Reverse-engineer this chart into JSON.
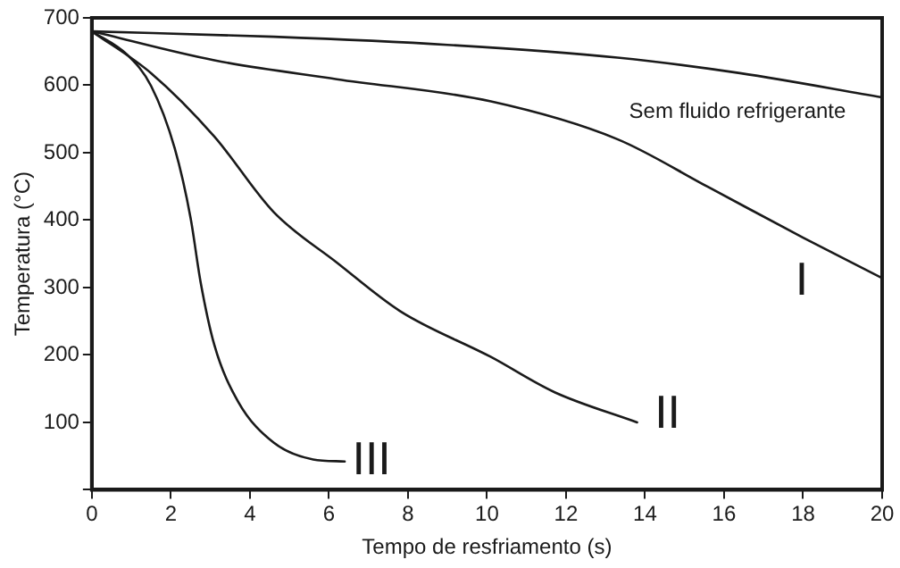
{
  "chart_data": {
    "type": "line",
    "xlabel": "Tempo de resfriamento (s)",
    "ylabel": "Temperatura (°C)",
    "xlim": [
      0,
      20
    ],
    "ylim": [
      0,
      700
    ],
    "xticks": [
      0,
      2,
      4,
      6,
      8,
      10,
      12,
      14,
      16,
      18,
      20
    ],
    "yticks": [
      {
        "value": 0,
        "label": null
      },
      100,
      200,
      300,
      400,
      500,
      600,
      700
    ],
    "grid": false,
    "legend": false,
    "marker": "none",
    "line_style": "solid",
    "series": [
      {
        "name": "Sem fluido refrigerante",
        "color": "#1a1a1a",
        "x": [
          0,
          4.6,
          9,
          13.3,
          16.4,
          20
        ],
        "values": [
          680,
          672,
          660,
          641,
          618,
          582
        ]
      },
      {
        "name": "I",
        "color": "#1a1a1a",
        "x": [
          0,
          3.1,
          6.2,
          10.1,
          13.3,
          15.6,
          18,
          20
        ],
        "values": [
          680,
          637,
          609,
          576,
          520,
          449,
          374,
          314
        ]
      },
      {
        "name": "II",
        "color": "#1a1a1a",
        "x": [
          0,
          1.5,
          3.1,
          4.6,
          6.2,
          7.8,
          10.1,
          11.7,
          13.8
        ],
        "values": [
          680,
          618,
          524,
          412,
          337,
          265,
          197,
          145,
          100
        ]
      },
      {
        "name": "III",
        "color": "#1a1a1a",
        "x": [
          0,
          0.9,
          1.5,
          2.1,
          2.5,
          2.75,
          3.1,
          3.7,
          4.6,
          5.6,
          6.4
        ],
        "values": [
          680,
          645,
          599,
          506,
          403,
          309,
          215,
          131,
          70,
          45,
          42
        ]
      }
    ]
  }
}
